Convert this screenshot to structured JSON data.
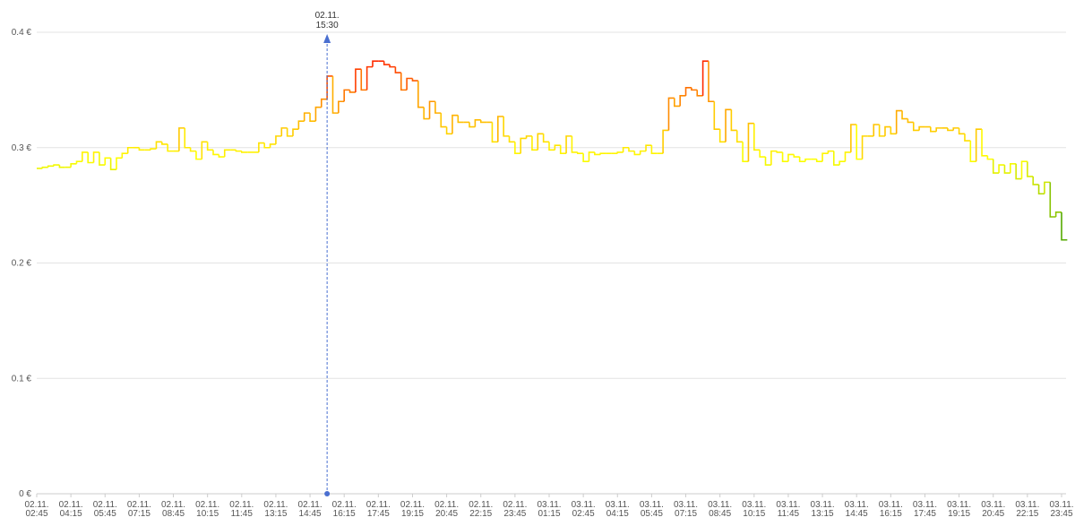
{
  "chart_data": {
    "type": "step",
    "categories": [
      {
        "date": "02.11.",
        "time": "02:45"
      },
      null,
      null,
      null,
      null,
      null,
      {
        "date": "02.11.",
        "time": "04:15"
      },
      null,
      null,
      null,
      null,
      null,
      {
        "date": "02.11.",
        "time": "05:45"
      },
      null,
      null,
      null,
      null,
      null,
      {
        "date": "02.11.",
        "time": "07:15"
      },
      null,
      null,
      null,
      null,
      null,
      {
        "date": "02.11.",
        "time": "08:45"
      },
      null,
      null,
      null,
      null,
      null,
      {
        "date": "02.11.",
        "time": "10:15"
      },
      null,
      null,
      null,
      null,
      null,
      {
        "date": "02.11.",
        "time": "11:45"
      },
      null,
      null,
      null,
      null,
      null,
      {
        "date": "02.11.",
        "time": "13:15"
      },
      null,
      null,
      null,
      null,
      null,
      {
        "date": "02.11.",
        "time": "14:45"
      },
      null,
      null,
      {
        "date": "02.11.",
        "time": "15:30"
      },
      null,
      null,
      {
        "date": "02.11.",
        "time": "16:15"
      },
      null,
      null,
      null,
      null,
      null,
      {
        "date": "02.11.",
        "time": "17:45"
      },
      null,
      null,
      null,
      null,
      null,
      {
        "date": "02.11.",
        "time": "19:15"
      },
      null,
      null,
      null,
      null,
      null,
      {
        "date": "02.11.",
        "time": "20:45"
      },
      null,
      null,
      null,
      null,
      null,
      {
        "date": "02.11.",
        "time": "22:15"
      },
      null,
      null,
      null,
      null,
      null,
      {
        "date": "02.11.",
        "time": "23:45"
      },
      null,
      null,
      null,
      null,
      null,
      {
        "date": "03.11.",
        "time": "01:15"
      },
      null,
      null,
      null,
      null,
      null,
      {
        "date": "03.11.",
        "time": "02:45"
      },
      null,
      null,
      null,
      null,
      null,
      {
        "date": "03.11.",
        "time": "04:15"
      },
      null,
      null,
      null,
      null,
      null,
      {
        "date": "03.11.",
        "time": "05:45"
      },
      null,
      null,
      null,
      null,
      null,
      {
        "date": "03.11.",
        "time": "07:15"
      },
      null,
      null,
      null,
      null,
      null,
      {
        "date": "03.11.",
        "time": "08:45"
      },
      null,
      null,
      null,
      null,
      null,
      {
        "date": "03.11.",
        "time": "10:15"
      },
      null,
      null,
      null,
      null,
      null,
      {
        "date": "03.11.",
        "time": "11:45"
      },
      null,
      null,
      null,
      null,
      null,
      {
        "date": "03.11.",
        "time": "13:15"
      },
      null,
      null,
      null,
      null,
      null,
      {
        "date": "03.11.",
        "time": "14:45"
      },
      null,
      null,
      null,
      null,
      null,
      {
        "date": "03.11.",
        "time": "16:15"
      },
      null,
      null,
      null,
      null,
      null,
      {
        "date": "03.11.",
        "time": "17:45"
      },
      null,
      null,
      null,
      null,
      null,
      {
        "date": "03.11.",
        "time": "19:15"
      },
      null,
      null,
      null,
      null,
      null,
      {
        "date": "03.11.",
        "time": "20:45"
      },
      null,
      null,
      null,
      null,
      null,
      {
        "date": "03.11.",
        "time": "22:15"
      },
      null,
      null,
      null,
      null,
      null,
      {
        "date": "03.11.",
        "time": "23:45"
      }
    ],
    "values": [
      0.282,
      0.283,
      0.284,
      0.285,
      0.283,
      0.283,
      0.286,
      0.288,
      0.296,
      0.287,
      0.296,
      0.285,
      0.291,
      0.281,
      0.291,
      0.295,
      0.3,
      0.3,
      0.298,
      0.298,
      0.299,
      0.305,
      0.303,
      0.297,
      0.297,
      0.317,
      0.3,
      0.297,
      0.29,
      0.305,
      0.298,
      0.294,
      0.292,
      0.298,
      0.298,
      0.297,
      0.296,
      0.296,
      0.296,
      0.304,
      0.3,
      0.303,
      0.31,
      0.317,
      0.31,
      0.316,
      0.323,
      0.33,
      0.323,
      0.335,
      0.342,
      0.362,
      0.33,
      0.34,
      0.35,
      0.348,
      0.368,
      0.35,
      0.37,
      0.375,
      0.375,
      0.372,
      0.37,
      0.365,
      0.35,
      0.36,
      0.358,
      0.335,
      0.325,
      0.34,
      0.33,
      0.318,
      0.312,
      0.328,
      0.322,
      0.322,
      0.318,
      0.324,
      0.322,
      0.322,
      0.305,
      0.327,
      0.31,
      0.305,
      0.295,
      0.308,
      0.31,
      0.298,
      0.312,
      0.305,
      0.298,
      0.302,
      0.295,
      0.31,
      0.296,
      0.295,
      0.288,
      0.296,
      0.294,
      0.295,
      0.295,
      0.295,
      0.296,
      0.3,
      0.297,
      0.294,
      0.297,
      0.302,
      0.295,
      0.295,
      0.315,
      0.343,
      0.336,
      0.345,
      0.352,
      0.35,
      0.345,
      0.375,
      0.34,
      0.316,
      0.305,
      0.333,
      0.315,
      0.305,
      0.288,
      0.321,
      0.298,
      0.292,
      0.285,
      0.297,
      0.296,
      0.288,
      0.294,
      0.292,
      0.288,
      0.29,
      0.29,
      0.288,
      0.295,
      0.297,
      0.285,
      0.288,
      0.296,
      0.32,
      0.29,
      0.31,
      0.31,
      0.32,
      0.31,
      0.318,
      0.312,
      0.332,
      0.325,
      0.322,
      0.315,
      0.318,
      0.318,
      0.314,
      0.317,
      0.317,
      0.315,
      0.317,
      0.312,
      0.306,
      0.288,
      0.316,
      0.293,
      0.29,
      0.278,
      0.285,
      0.278,
      0.286,
      0.273,
      0.288,
      0.275,
      0.268,
      0.26,
      0.27,
      0.24,
      0.244,
      0.22
    ],
    "ylim": [
      0,
      0.4
    ],
    "yticks": [
      {
        "value": 0,
        "label": "0 €"
      },
      {
        "value": 0.1,
        "label": "0.1 €"
      },
      {
        "value": 0.2,
        "label": "0.2 €"
      },
      {
        "value": 0.3,
        "label": "0.3 €"
      },
      {
        "value": 0.4,
        "label": "0.4 €"
      }
    ],
    "grid": true,
    "axis_label_every": 6,
    "tooltip_index": 51,
    "tooltip_color": "#4a6fd0",
    "color_stops": [
      [
        0.22,
        "#55aa00"
      ],
      [
        0.29,
        "#ffff00"
      ],
      [
        0.335,
        "#ffa500"
      ],
      [
        0.375,
        "#ff2a00"
      ]
    ]
  }
}
